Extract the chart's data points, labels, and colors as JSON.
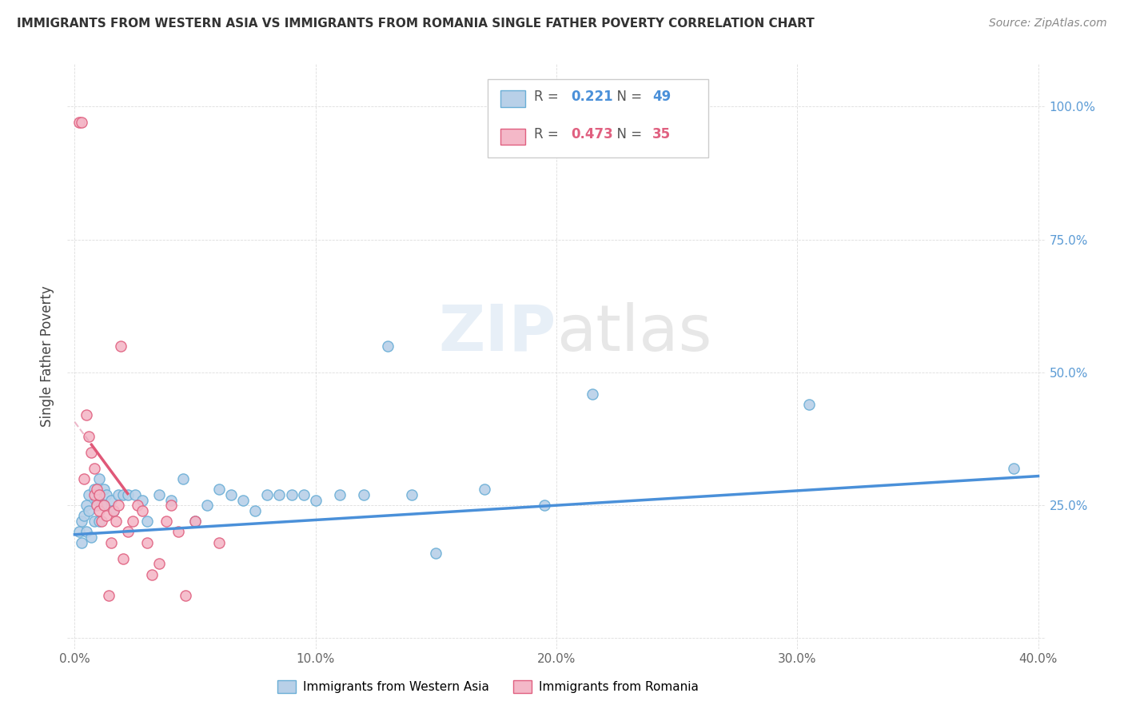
{
  "title": "IMMIGRANTS FROM WESTERN ASIA VS IMMIGRANTS FROM ROMANIA SINGLE FATHER POVERTY CORRELATION CHART",
  "source": "Source: ZipAtlas.com",
  "ylabel": "Single Father Poverty",
  "xlim": [
    -0.003,
    0.403
  ],
  "ylim": [
    -0.02,
    1.08
  ],
  "xtick_values": [
    0.0,
    0.1,
    0.2,
    0.3,
    0.4
  ],
  "xtick_labels": [
    "0.0%",
    "10.0%",
    "20.0%",
    "30.0%",
    "40.0%"
  ],
  "ytick_values": [
    0.0,
    0.25,
    0.5,
    0.75,
    1.0
  ],
  "color_western_asia_fill": "#b8d0e8",
  "color_western_asia_edge": "#6aaed6",
  "color_romania_fill": "#f4b8c8",
  "color_romania_edge": "#e06080",
  "color_line_wa": "#4a90d9",
  "color_line_ro": "#e05878",
  "color_line_ro_dashed": "#e8a0b8",
  "right_axis_color": "#5b9bd5",
  "title_fontsize": 11,
  "source_fontsize": 10,
  "western_asia_x": [
    0.002,
    0.003,
    0.003,
    0.004,
    0.005,
    0.005,
    0.006,
    0.006,
    0.007,
    0.008,
    0.008,
    0.009,
    0.01,
    0.01,
    0.011,
    0.012,
    0.013,
    0.015,
    0.016,
    0.018,
    0.02,
    0.022,
    0.025,
    0.028,
    0.03,
    0.035,
    0.04,
    0.045,
    0.05,
    0.055,
    0.06,
    0.065,
    0.07,
    0.075,
    0.08,
    0.085,
    0.09,
    0.095,
    0.1,
    0.11,
    0.12,
    0.13,
    0.14,
    0.15,
    0.17,
    0.195,
    0.215,
    0.305,
    0.39
  ],
  "western_asia_y": [
    0.2,
    0.18,
    0.22,
    0.23,
    0.25,
    0.2,
    0.27,
    0.24,
    0.19,
    0.22,
    0.28,
    0.26,
    0.3,
    0.22,
    0.25,
    0.28,
    0.27,
    0.26,
    0.24,
    0.27,
    0.27,
    0.27,
    0.27,
    0.26,
    0.22,
    0.27,
    0.26,
    0.3,
    0.22,
    0.25,
    0.28,
    0.27,
    0.26,
    0.24,
    0.27,
    0.27,
    0.27,
    0.27,
    0.26,
    0.27,
    0.27,
    0.55,
    0.27,
    0.16,
    0.28,
    0.25,
    0.46,
    0.44,
    0.32
  ],
  "romania_x": [
    0.002,
    0.003,
    0.004,
    0.005,
    0.006,
    0.007,
    0.008,
    0.008,
    0.009,
    0.009,
    0.01,
    0.01,
    0.011,
    0.012,
    0.013,
    0.014,
    0.015,
    0.016,
    0.017,
    0.018,
    0.019,
    0.02,
    0.022,
    0.024,
    0.026,
    0.028,
    0.03,
    0.032,
    0.035,
    0.038,
    0.04,
    0.043,
    0.046,
    0.05,
    0.06
  ],
  "romania_y": [
    0.97,
    0.97,
    0.3,
    0.42,
    0.38,
    0.35,
    0.27,
    0.32,
    0.28,
    0.25,
    0.27,
    0.24,
    0.22,
    0.25,
    0.23,
    0.08,
    0.18,
    0.24,
    0.22,
    0.25,
    0.55,
    0.15,
    0.2,
    0.22,
    0.25,
    0.24,
    0.18,
    0.12,
    0.14,
    0.22,
    0.25,
    0.2,
    0.08,
    0.22,
    0.18
  ],
  "trendline_wa_x0": 0.0,
  "trendline_wa_x1": 0.4,
  "trendline_wa_y0": 0.195,
  "trendline_wa_y1": 0.305,
  "trendline_ro_solid_x0": 0.007,
  "trendline_ro_solid_x1": 0.022,
  "trendline_ro_dashed_x0": 0.0,
  "trendline_ro_dashed_x1": 0.022
}
